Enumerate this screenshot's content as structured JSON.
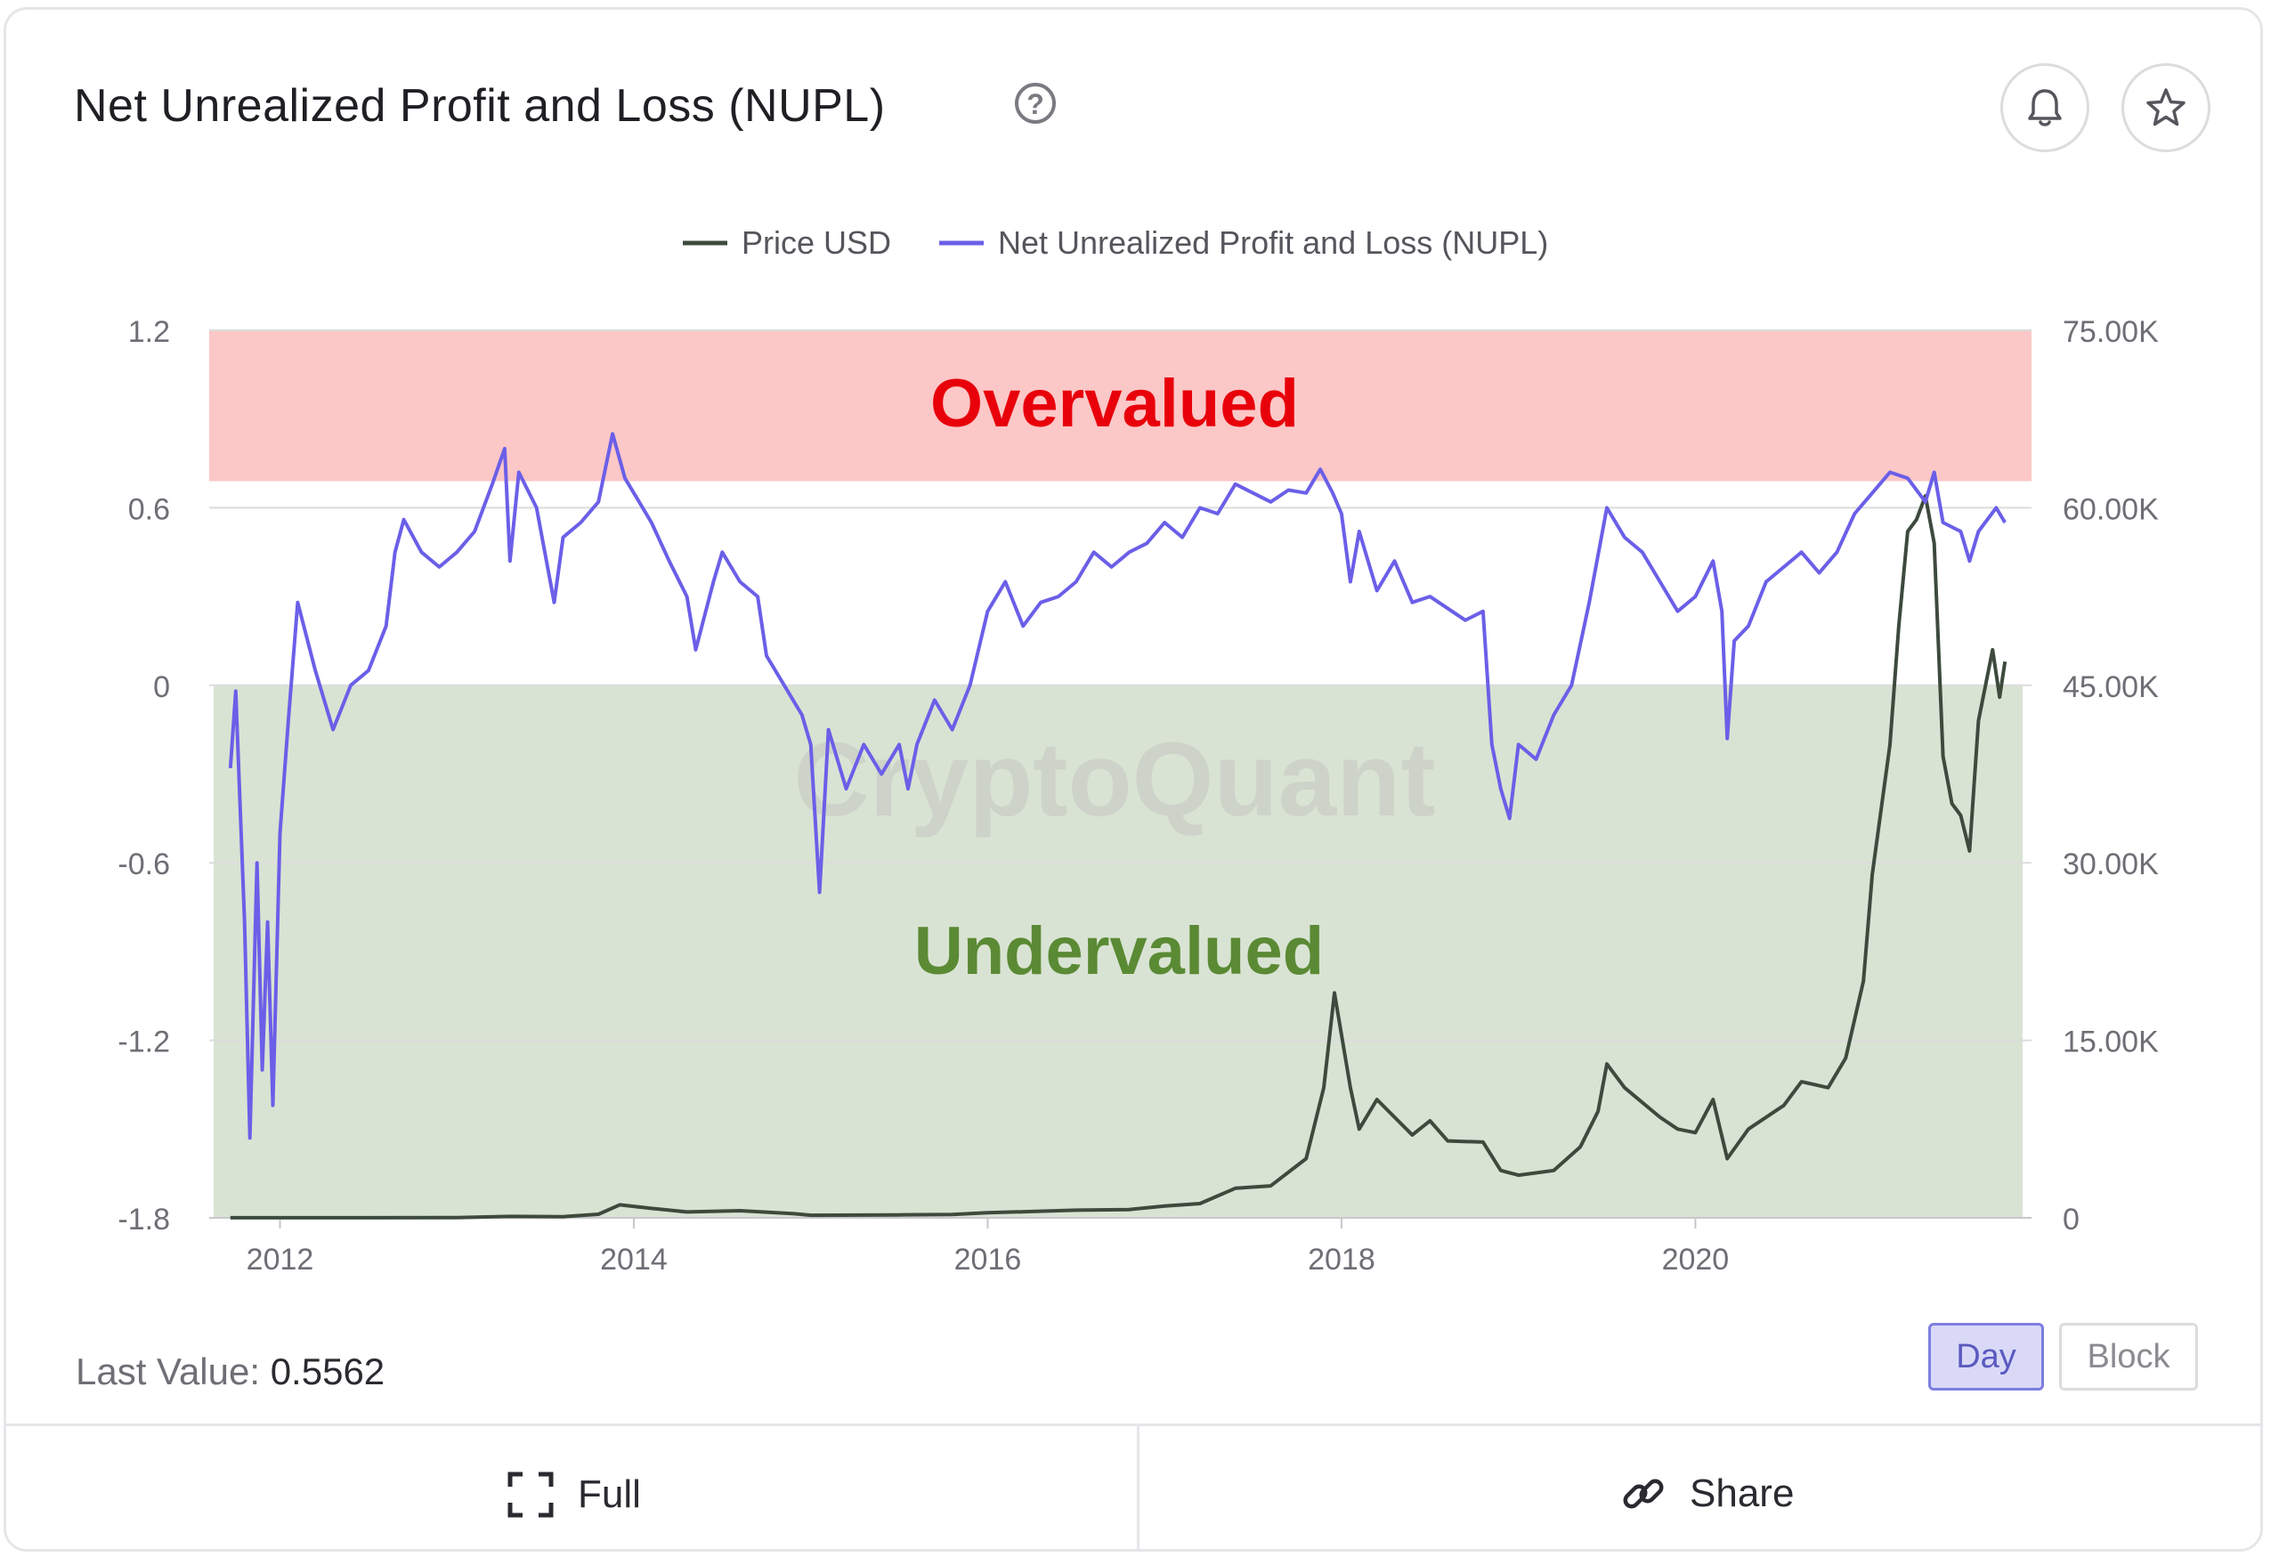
{
  "header": {
    "title": "Net Unrealized Profit and Loss (NUPL)",
    "help_glyph": "?",
    "help_icon": "question-circle-icon",
    "alert_icon": "bell-icon",
    "favorite_icon": "star-icon"
  },
  "colors": {
    "price": "#3d4a3d",
    "nupl": "#6b5fe8",
    "overvalued_zone": "#fcc7c7",
    "undervalued_zone": "#d9e3d3",
    "overvalued_text": "#e8000a",
    "undervalued_text": "#5a8a34",
    "watermark": "#c8cdc6"
  },
  "chart_data": {
    "type": "line",
    "legend": [
      "Price USD",
      "Net Unrealized Profit and Loss (NUPL)"
    ],
    "legend_position": "top-center",
    "x_ticks": [
      "2012",
      "2014",
      "2016",
      "2018",
      "2020"
    ],
    "xlim": [
      2011.6,
      2021.9
    ],
    "y_left": {
      "ticks": [
        "1.2",
        "0.6",
        "0",
        "-0.6",
        "-1.2",
        "-1.8"
      ],
      "lim": [
        -1.8,
        1.2
      ]
    },
    "y_right": {
      "ticks": [
        "75.00K",
        "60.00K",
        "45.00K",
        "30.00K",
        "15.00K",
        "0"
      ],
      "lim": [
        0,
        75000
      ]
    },
    "grid": true,
    "zones": [
      {
        "label": "Overvalued",
        "from": 0.69,
        "to": 1.2
      },
      {
        "label": "Undervalued",
        "from": -1.8,
        "to": 0
      }
    ],
    "watermark": "CryptoQuant",
    "series": [
      {
        "name": "Price USD",
        "axis": "right",
        "points": [
          [
            2011.72,
            5
          ],
          [
            2012.0,
            5
          ],
          [
            2012.5,
            7
          ],
          [
            2013.0,
            14
          ],
          [
            2013.3,
            120
          ],
          [
            2013.6,
            100
          ],
          [
            2013.8,
            300
          ],
          [
            2013.92,
            1100
          ],
          [
            2014.1,
            800
          ],
          [
            2014.3,
            500
          ],
          [
            2014.6,
            600
          ],
          [
            2014.9,
            350
          ],
          [
            2015.0,
            220
          ],
          [
            2015.5,
            250
          ],
          [
            2015.8,
            280
          ],
          [
            2016.0,
            430
          ],
          [
            2016.5,
            650
          ],
          [
            2016.8,
            700
          ],
          [
            2017.0,
            1000
          ],
          [
            2017.2,
            1200
          ],
          [
            2017.4,
            2500
          ],
          [
            2017.6,
            2700
          ],
          [
            2017.8,
            5000
          ],
          [
            2017.9,
            11000
          ],
          [
            2017.96,
            19000
          ],
          [
            2018.05,
            11000
          ],
          [
            2018.1,
            7500
          ],
          [
            2018.2,
            10000
          ],
          [
            2018.4,
            7000
          ],
          [
            2018.5,
            8200
          ],
          [
            2018.6,
            6500
          ],
          [
            2018.8,
            6400
          ],
          [
            2018.9,
            4000
          ],
          [
            2019.0,
            3600
          ],
          [
            2019.2,
            4000
          ],
          [
            2019.35,
            6000
          ],
          [
            2019.45,
            9000
          ],
          [
            2019.5,
            13000
          ],
          [
            2019.6,
            11000
          ],
          [
            2019.8,
            8500
          ],
          [
            2019.9,
            7500
          ],
          [
            2020.0,
            7200
          ],
          [
            2020.1,
            10000
          ],
          [
            2020.18,
            5000
          ],
          [
            2020.3,
            7500
          ],
          [
            2020.5,
            9500
          ],
          [
            2020.6,
            11500
          ],
          [
            2020.75,
            11000
          ],
          [
            2020.85,
            13500
          ],
          [
            2020.95,
            20000
          ],
          [
            2021.0,
            29000
          ],
          [
            2021.1,
            40000
          ],
          [
            2021.15,
            50000
          ],
          [
            2021.2,
            58000
          ],
          [
            2021.25,
            59000
          ],
          [
            2021.3,
            61000
          ],
          [
            2021.35,
            57000
          ],
          [
            2021.4,
            39000
          ],
          [
            2021.45,
            35000
          ],
          [
            2021.5,
            34000
          ],
          [
            2021.55,
            31000
          ],
          [
            2021.6,
            42000
          ],
          [
            2021.68,
            48000
          ],
          [
            2021.72,
            44000
          ],
          [
            2021.75,
            47000
          ]
        ]
      },
      {
        "name": "Net Unrealized Profit and Loss (NUPL)",
        "axis": "left",
        "points": [
          [
            2011.72,
            -0.28
          ],
          [
            2011.75,
            -0.02
          ],
          [
            2011.8,
            -0.8
          ],
          [
            2011.83,
            -1.53
          ],
          [
            2011.87,
            -0.6
          ],
          [
            2011.9,
            -1.3
          ],
          [
            2011.93,
            -0.8
          ],
          [
            2011.96,
            -1.42
          ],
          [
            2012.0,
            -0.5
          ],
          [
            2012.05,
            -0.1
          ],
          [
            2012.1,
            0.28
          ],
          [
            2012.2,
            0.05
          ],
          [
            2012.3,
            -0.15
          ],
          [
            2012.4,
            0.0
          ],
          [
            2012.5,
            0.05
          ],
          [
            2012.6,
            0.2
          ],
          [
            2012.65,
            0.45
          ],
          [
            2012.7,
            0.56
          ],
          [
            2012.8,
            0.45
          ],
          [
            2012.9,
            0.4
          ],
          [
            2013.0,
            0.45
          ],
          [
            2013.1,
            0.52
          ],
          [
            2013.2,
            0.68
          ],
          [
            2013.27,
            0.8
          ],
          [
            2013.3,
            0.42
          ],
          [
            2013.35,
            0.72
          ],
          [
            2013.45,
            0.6
          ],
          [
            2013.55,
            0.28
          ],
          [
            2013.6,
            0.5
          ],
          [
            2013.7,
            0.55
          ],
          [
            2013.8,
            0.62
          ],
          [
            2013.88,
            0.85
          ],
          [
            2013.95,
            0.7
          ],
          [
            2014.0,
            0.65
          ],
          [
            2014.1,
            0.55
          ],
          [
            2014.2,
            0.42
          ],
          [
            2014.3,
            0.3
          ],
          [
            2014.35,
            0.12
          ],
          [
            2014.45,
            0.35
          ],
          [
            2014.5,
            0.45
          ],
          [
            2014.6,
            0.35
          ],
          [
            2014.7,
            0.3
          ],
          [
            2014.75,
            0.1
          ],
          [
            2014.85,
            0.0
          ],
          [
            2014.95,
            -0.1
          ],
          [
            2015.0,
            -0.2
          ],
          [
            2015.05,
            -0.7
          ],
          [
            2015.1,
            -0.15
          ],
          [
            2015.2,
            -0.35
          ],
          [
            2015.3,
            -0.2
          ],
          [
            2015.4,
            -0.3
          ],
          [
            2015.5,
            -0.2
          ],
          [
            2015.55,
            -0.35
          ],
          [
            2015.6,
            -0.2
          ],
          [
            2015.7,
            -0.05
          ],
          [
            2015.8,
            -0.15
          ],
          [
            2015.9,
            0.0
          ],
          [
            2016.0,
            0.25
          ],
          [
            2016.1,
            0.35
          ],
          [
            2016.2,
            0.2
          ],
          [
            2016.3,
            0.28
          ],
          [
            2016.4,
            0.3
          ],
          [
            2016.5,
            0.35
          ],
          [
            2016.6,
            0.45
          ],
          [
            2016.7,
            0.4
          ],
          [
            2016.8,
            0.45
          ],
          [
            2016.9,
            0.48
          ],
          [
            2017.0,
            0.55
          ],
          [
            2017.1,
            0.5
          ],
          [
            2017.2,
            0.6
          ],
          [
            2017.3,
            0.58
          ],
          [
            2017.4,
            0.68
          ],
          [
            2017.5,
            0.65
          ],
          [
            2017.6,
            0.62
          ],
          [
            2017.7,
            0.66
          ],
          [
            2017.8,
            0.65
          ],
          [
            2017.88,
            0.73
          ],
          [
            2017.95,
            0.65
          ],
          [
            2018.0,
            0.58
          ],
          [
            2018.05,
            0.35
          ],
          [
            2018.1,
            0.52
          ],
          [
            2018.2,
            0.32
          ],
          [
            2018.3,
            0.42
          ],
          [
            2018.4,
            0.28
          ],
          [
            2018.5,
            0.3
          ],
          [
            2018.6,
            0.26
          ],
          [
            2018.7,
            0.22
          ],
          [
            2018.8,
            0.25
          ],
          [
            2018.85,
            -0.2
          ],
          [
            2018.9,
            -0.35
          ],
          [
            2018.95,
            -0.45
          ],
          [
            2019.0,
            -0.2
          ],
          [
            2019.1,
            -0.25
          ],
          [
            2019.2,
            -0.1
          ],
          [
            2019.3,
            0.0
          ],
          [
            2019.4,
            0.28
          ],
          [
            2019.5,
            0.6
          ],
          [
            2019.6,
            0.5
          ],
          [
            2019.7,
            0.45
          ],
          [
            2019.8,
            0.35
          ],
          [
            2019.9,
            0.25
          ],
          [
            2020.0,
            0.3
          ],
          [
            2020.1,
            0.42
          ],
          [
            2020.15,
            0.25
          ],
          [
            2020.18,
            -0.18
          ],
          [
            2020.22,
            0.15
          ],
          [
            2020.3,
            0.2
          ],
          [
            2020.4,
            0.35
          ],
          [
            2020.5,
            0.4
          ],
          [
            2020.6,
            0.45
          ],
          [
            2020.7,
            0.38
          ],
          [
            2020.8,
            0.45
          ],
          [
            2020.9,
            0.58
          ],
          [
            2021.0,
            0.65
          ],
          [
            2021.1,
            0.72
          ],
          [
            2021.2,
            0.7
          ],
          [
            2021.3,
            0.62
          ],
          [
            2021.35,
            0.72
          ],
          [
            2021.4,
            0.55
          ],
          [
            2021.5,
            0.52
          ],
          [
            2021.55,
            0.42
          ],
          [
            2021.6,
            0.52
          ],
          [
            2021.7,
            0.6
          ],
          [
            2021.75,
            0.55
          ]
        ]
      }
    ]
  },
  "footer": {
    "last_value_label": "Last Value:",
    "last_value": "0.5562",
    "day_label": "Day",
    "block_label": "Block",
    "full_label": "Full",
    "full_icon": "expand-icon",
    "share_label": "Share",
    "share_icon": "link-icon"
  }
}
